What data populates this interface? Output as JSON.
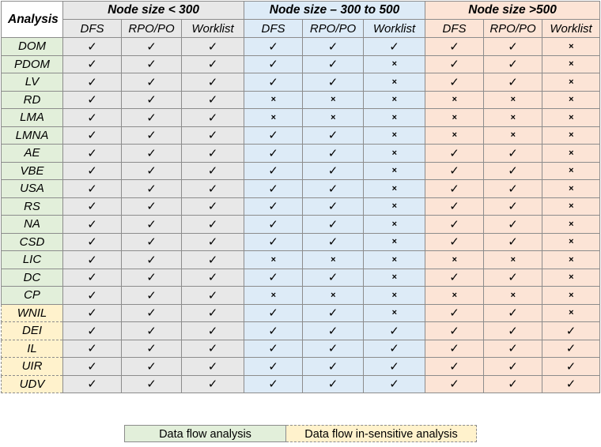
{
  "header": {
    "corner": "Analysis",
    "groups": [
      "Node size < 300",
      "Node size – 300 to 500",
      "Node size >500"
    ],
    "subcols": [
      "DFS",
      "RPO/PO",
      "Worklist"
    ]
  },
  "rows": [
    {
      "name": "DOM",
      "type": "df",
      "marks": [
        "y",
        "y",
        "y",
        "y",
        "y",
        "y",
        "y",
        "y",
        "n"
      ]
    },
    {
      "name": "PDOM",
      "type": "df",
      "marks": [
        "y",
        "y",
        "y",
        "y",
        "y",
        "n",
        "y",
        "y",
        "n"
      ]
    },
    {
      "name": "LV",
      "type": "df",
      "marks": [
        "y",
        "y",
        "y",
        "y",
        "y",
        "n",
        "y",
        "y",
        "n"
      ]
    },
    {
      "name": "RD",
      "type": "df",
      "marks": [
        "y",
        "y",
        "y",
        "n",
        "n",
        "n",
        "n",
        "n",
        "n"
      ]
    },
    {
      "name": "LMA",
      "type": "df",
      "marks": [
        "y",
        "y",
        "y",
        "n",
        "n",
        "n",
        "n",
        "n",
        "n"
      ]
    },
    {
      "name": "LMNA",
      "type": "df",
      "marks": [
        "y",
        "y",
        "y",
        "y",
        "y",
        "n",
        "n",
        "n",
        "n"
      ]
    },
    {
      "name": "AE",
      "type": "df",
      "marks": [
        "y",
        "y",
        "y",
        "y",
        "y",
        "n",
        "y",
        "y",
        "n"
      ]
    },
    {
      "name": "VBE",
      "type": "df",
      "marks": [
        "y",
        "y",
        "y",
        "y",
        "y",
        "n",
        "y",
        "y",
        "n"
      ]
    },
    {
      "name": "USA",
      "type": "df",
      "marks": [
        "y",
        "y",
        "y",
        "y",
        "y",
        "n",
        "y",
        "y",
        "n"
      ]
    },
    {
      "name": "RS",
      "type": "df",
      "marks": [
        "y",
        "y",
        "y",
        "y",
        "y",
        "n",
        "y",
        "y",
        "n"
      ]
    },
    {
      "name": "NA",
      "type": "df",
      "marks": [
        "y",
        "y",
        "y",
        "y",
        "y",
        "n",
        "y",
        "y",
        "n"
      ]
    },
    {
      "name": "CSD",
      "type": "df",
      "marks": [
        "y",
        "y",
        "y",
        "y",
        "y",
        "n",
        "y",
        "y",
        "n"
      ]
    },
    {
      "name": "LIC",
      "type": "df",
      "marks": [
        "y",
        "y",
        "y",
        "n",
        "n",
        "n",
        "n",
        "n",
        "n"
      ]
    },
    {
      "name": "DC",
      "type": "df",
      "marks": [
        "y",
        "y",
        "y",
        "y",
        "y",
        "n",
        "y",
        "y",
        "n"
      ]
    },
    {
      "name": "CP",
      "type": "df",
      "marks": [
        "y",
        "y",
        "y",
        "n",
        "n",
        "n",
        "n",
        "n",
        "n"
      ]
    },
    {
      "name": "WNIL",
      "type": "dfi",
      "marks": [
        "y",
        "y",
        "y",
        "y",
        "y",
        "n",
        "y",
        "y",
        "n"
      ]
    },
    {
      "name": "DEI",
      "type": "dfi",
      "marks": [
        "y",
        "y",
        "y",
        "y",
        "y",
        "y",
        "y",
        "y",
        "y"
      ]
    },
    {
      "name": "IL",
      "type": "dfi",
      "marks": [
        "y",
        "y",
        "y",
        "y",
        "y",
        "y",
        "y",
        "y",
        "y"
      ]
    },
    {
      "name": "UIR",
      "type": "dfi",
      "marks": [
        "y",
        "y",
        "y",
        "y",
        "y",
        "y",
        "y",
        "y",
        "y"
      ]
    },
    {
      "name": "UDV",
      "type": "dfi",
      "marks": [
        "y",
        "y",
        "y",
        "y",
        "y",
        "y",
        "y",
        "y",
        "y"
      ]
    }
  ],
  "symbols": {
    "y": "✓",
    "n": "×"
  },
  "legend": {
    "df": "Data flow analysis",
    "dfi": "Data flow in-sensitive analysis"
  },
  "colors": {
    "group1": "#e8e8e8",
    "group2": "#ddebf7",
    "group3": "#fce4d6",
    "df": "#e2efda",
    "dfi": "#fff2cc"
  }
}
